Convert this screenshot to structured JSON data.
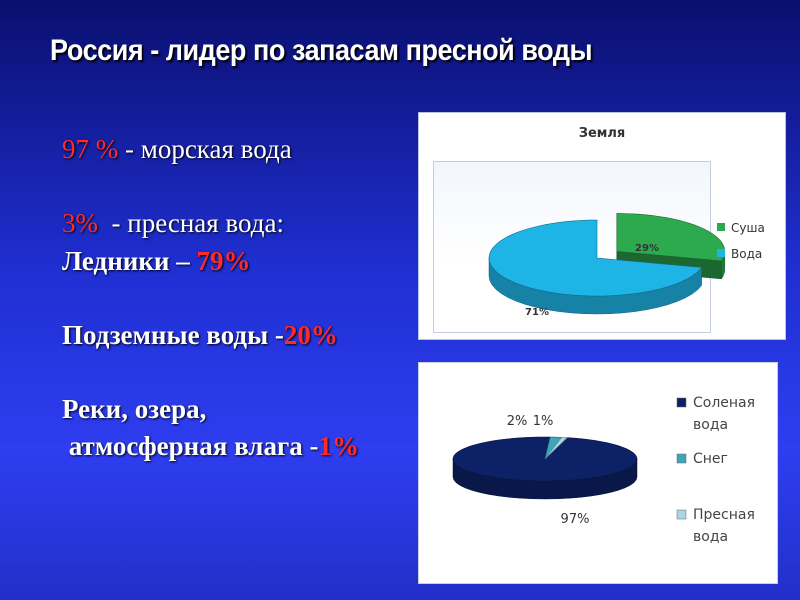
{
  "title": "Россия - лидер по запасам пресной воды",
  "text": {
    "line1_value": "97 %",
    "line1_rest": " - морская вода",
    "line2_value": "3%",
    "line2_rest": "  - пресная вода:",
    "line3_label": "Ледники – ",
    "line3_value": "79%",
    "line4_label": "Подземные воды -",
    "line4_value": "20%",
    "line5": "Реки, озера,",
    "line6_label": " атмосферная влага -",
    "line6_value": "1%"
  },
  "colors": {
    "suhsa": "#2eaa4e",
    "voda": "#1fb4e6",
    "salt": "#0d2266",
    "snow": "#3ea6b8",
    "fresh": "#a9d6e6",
    "red_text": "#ff2a2a"
  },
  "chart_data": [
    {
      "type": "pie",
      "title": "Земля",
      "categories": [
        "Суша",
        "Вода"
      ],
      "values": [
        29,
        71
      ],
      "data_labels": [
        "29%",
        "71%"
      ],
      "legend": "right",
      "exploded": true,
      "three_d": true
    },
    {
      "type": "pie",
      "title": "",
      "categories": [
        "Соленая вода",
        "Снег",
        "Пресная вода"
      ],
      "values": [
        97,
        2,
        1
      ],
      "data_labels": [
        "97%",
        "2%",
        "1%"
      ],
      "legend": "right",
      "three_d": true
    }
  ]
}
